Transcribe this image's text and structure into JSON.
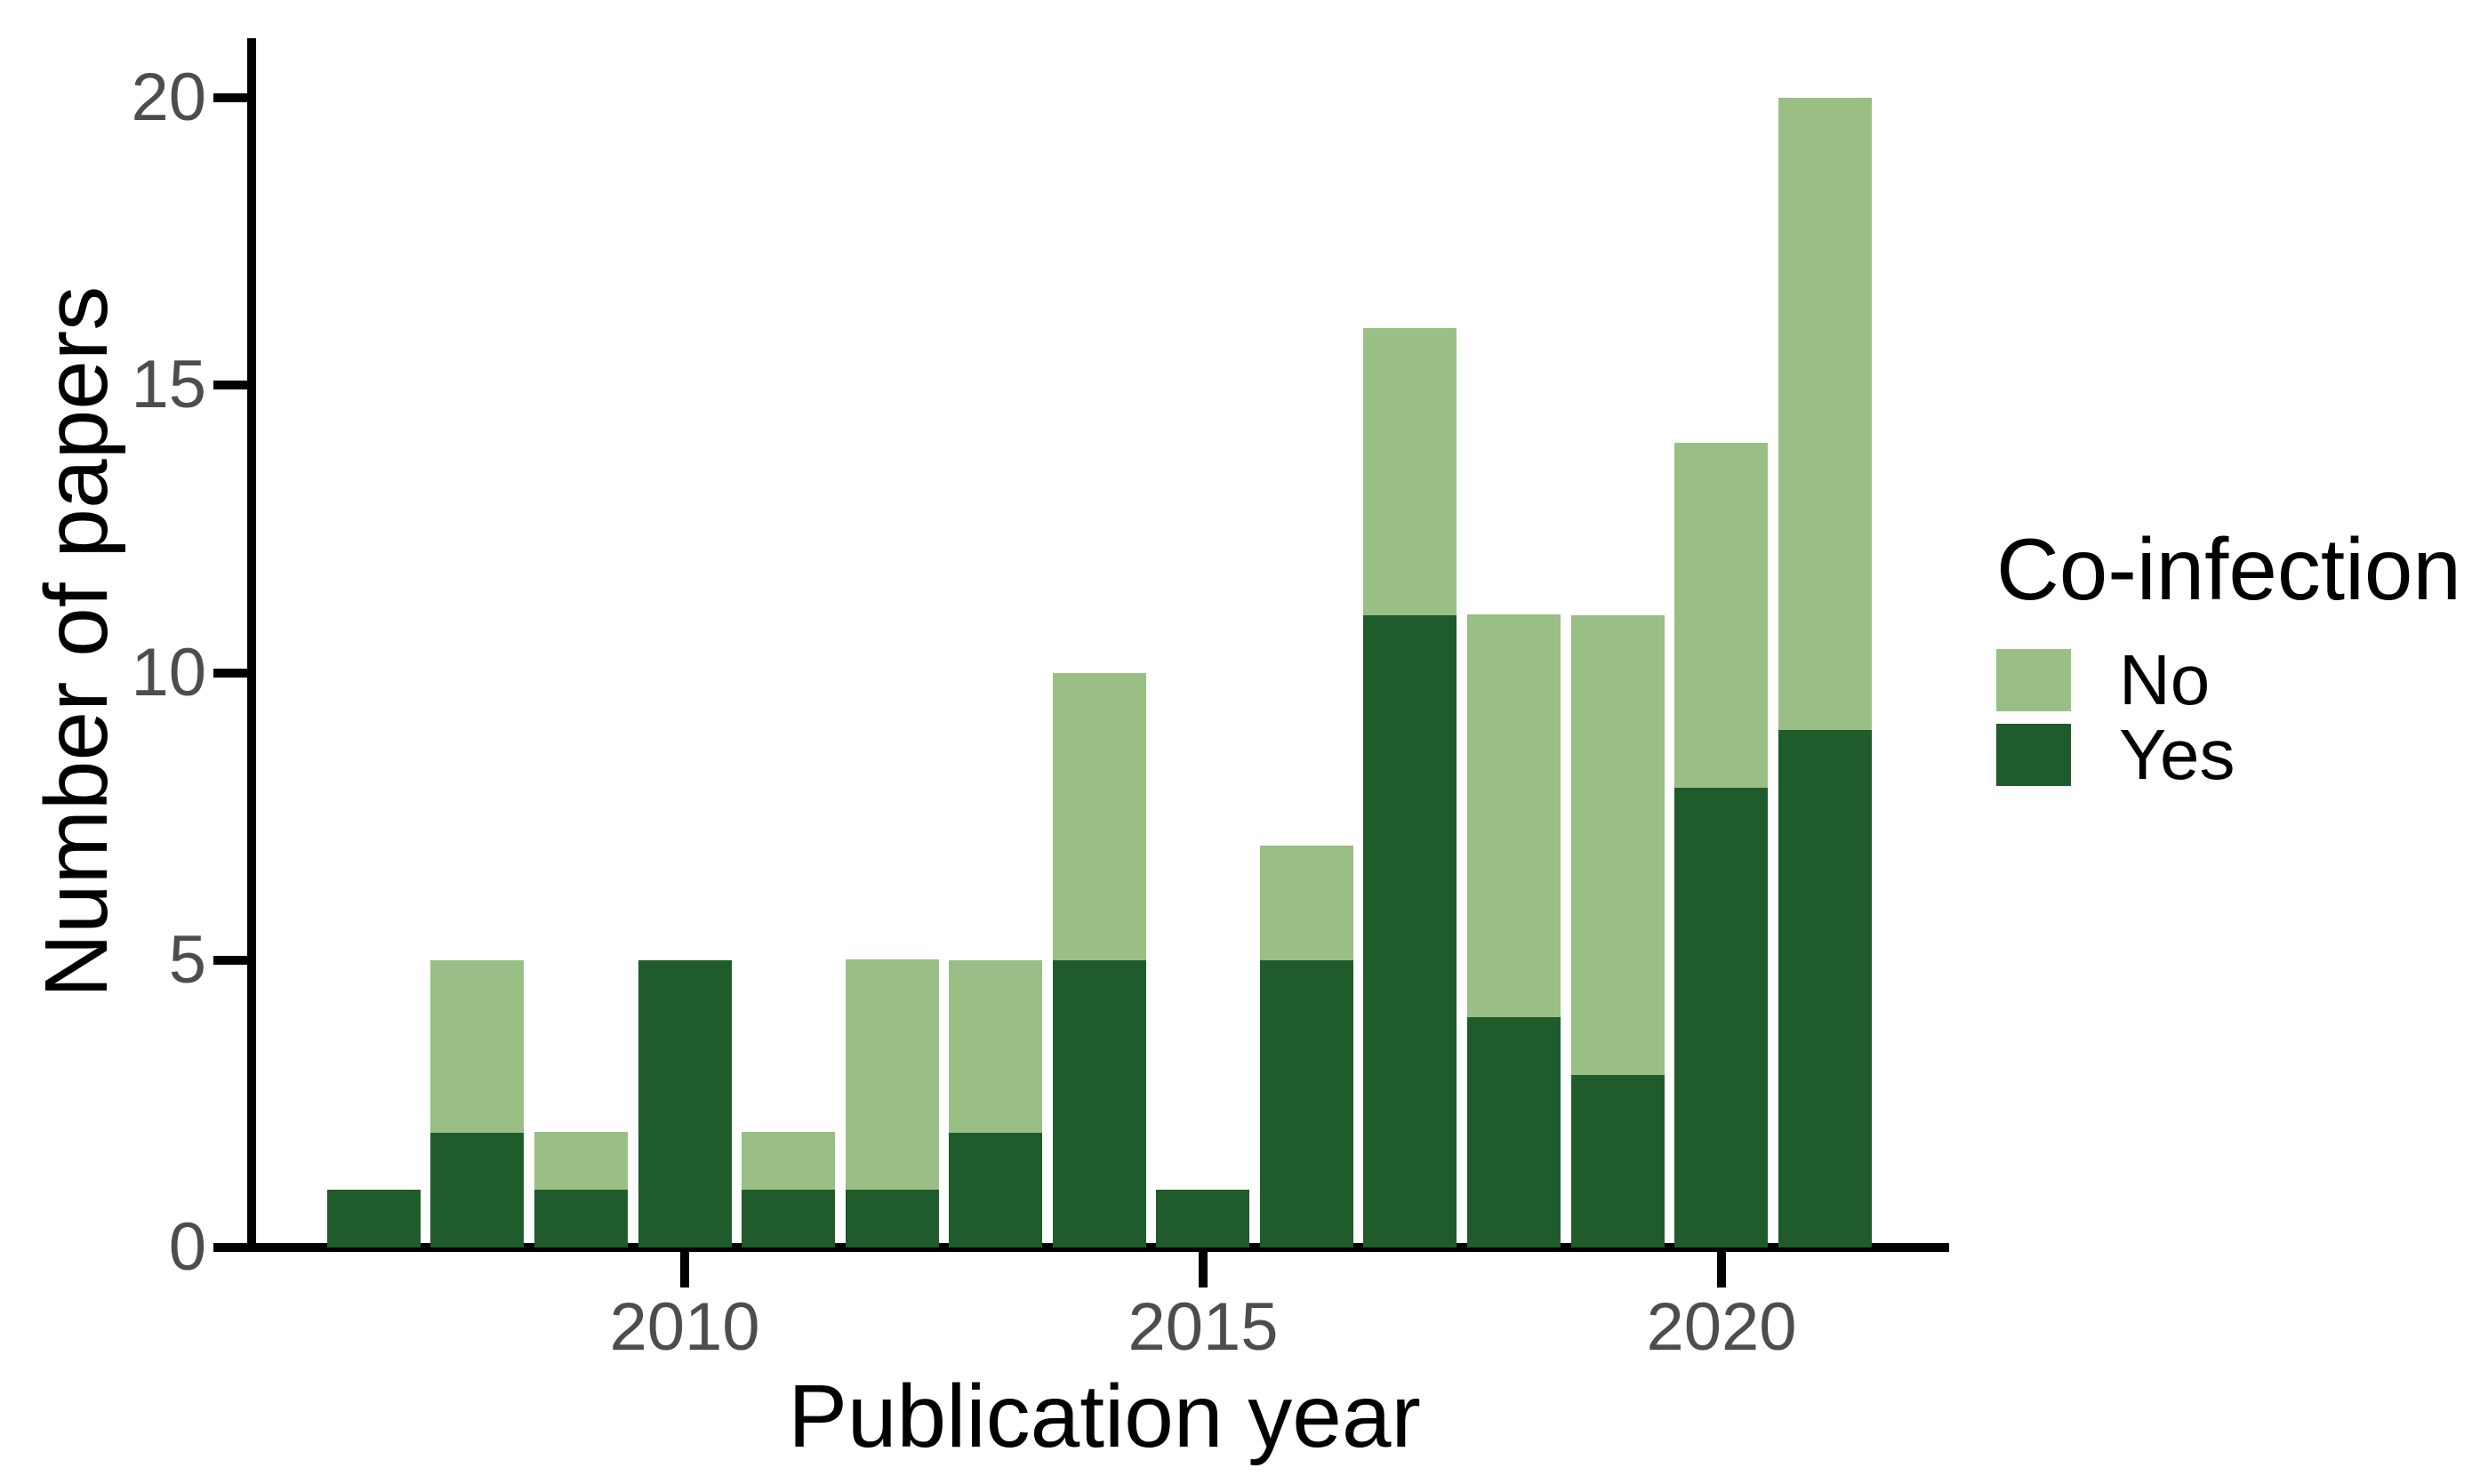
{
  "chart_data": {
    "type": "bar",
    "stacked": true,
    "title": "",
    "xlabel": "Publication year",
    "ylabel": "Number of papers",
    "categories": [
      "2007",
      "2008",
      "2009",
      "2010",
      "2011",
      "2012",
      "2013",
      "2014",
      "2015",
      "2016",
      "2017",
      "2018",
      "2019",
      "2020",
      "2021"
    ],
    "series": [
      {
        "name": "Yes",
        "color": "#1f5b2b",
        "values": [
          1,
          2,
          1,
          5,
          1,
          1,
          2,
          5,
          1,
          5,
          11,
          4,
          3,
          8,
          9
        ]
      },
      {
        "name": "No",
        "color": "#9abf84",
        "values": [
          0,
          3,
          1,
          0,
          1,
          4,
          3,
          5,
          0,
          2,
          5,
          7,
          8,
          6,
          11
        ]
      }
    ],
    "stack_order_bottom_to_top": [
      "Yes",
      "No"
    ],
    "x_ticks": [
      "2010",
      "2015",
      "2020"
    ],
    "y_ticks": [
      0,
      5,
      10,
      15,
      20
    ],
    "ylim": [
      0,
      20
    ],
    "grid": false,
    "legend_position": "right"
  },
  "legend": {
    "title": "Co-infection",
    "items": [
      {
        "label": "No",
        "color": "#9abf84"
      },
      {
        "label": "Yes",
        "color": "#1f5b2b"
      }
    ]
  },
  "colors": {
    "axis": "#000000",
    "tick_label": "#4d4d4d",
    "background": "#ffffff"
  }
}
